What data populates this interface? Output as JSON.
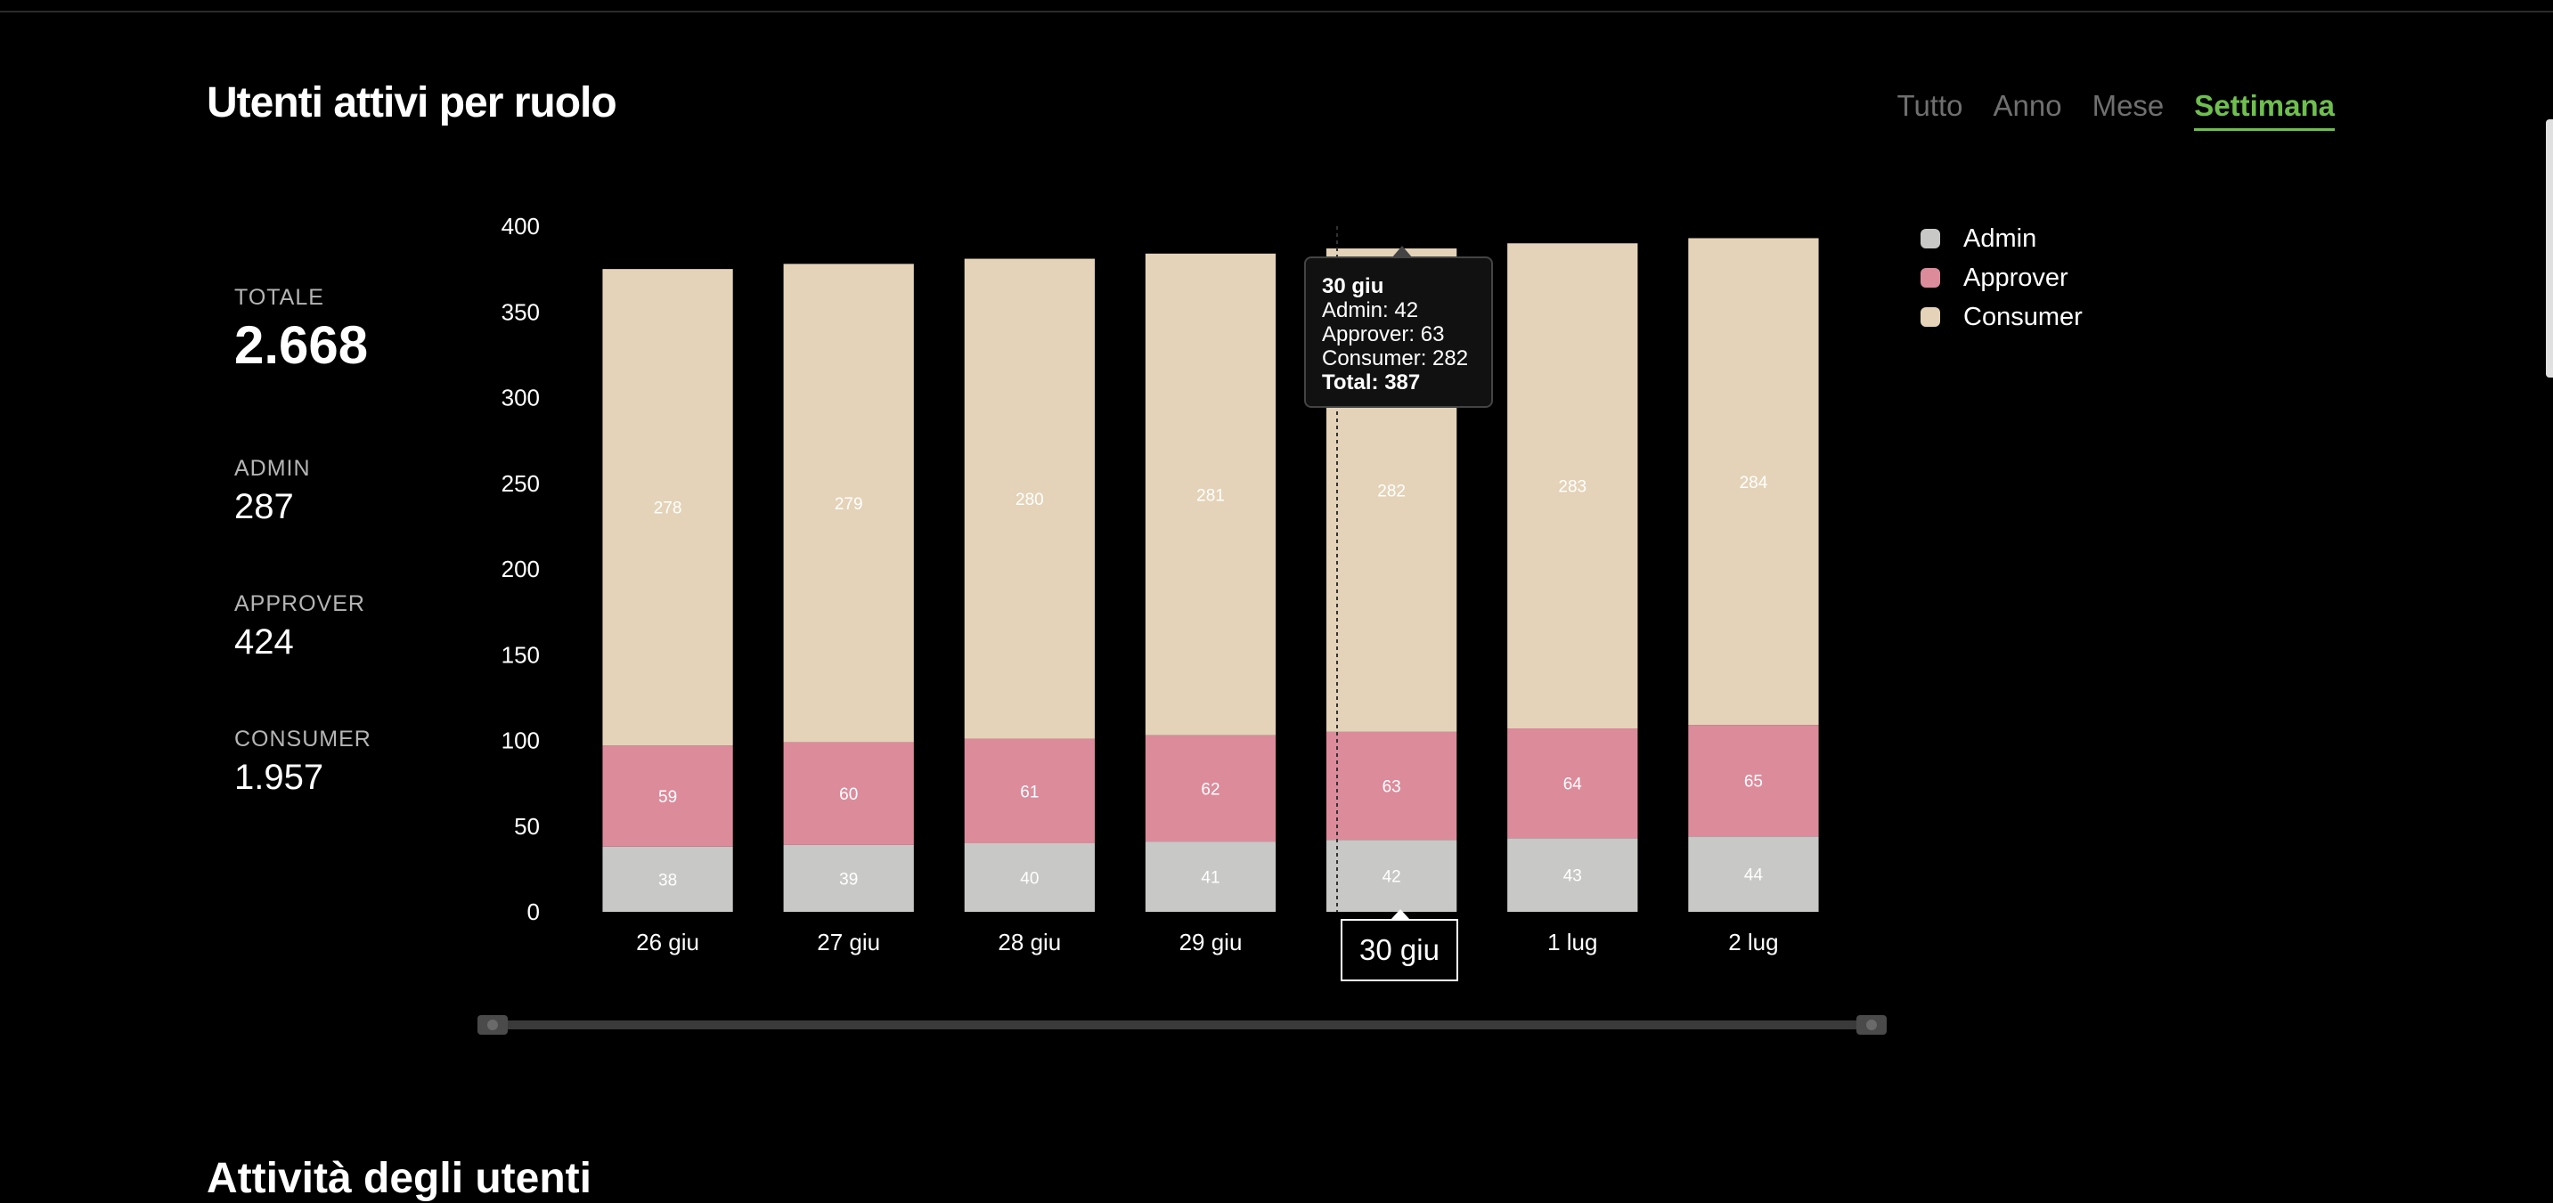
{
  "header": {
    "title": "Utenti attivi per ruolo",
    "tabs": [
      {
        "label": "Tutto",
        "active": false
      },
      {
        "label": "Anno",
        "active": false
      },
      {
        "label": "Mese",
        "active": false
      },
      {
        "label": "Settimana",
        "active": true
      }
    ]
  },
  "stats": [
    {
      "label": "TOTALE",
      "value": "2.668"
    },
    {
      "label": "ADMIN",
      "value": "287"
    },
    {
      "label": "APPROVER",
      "value": "424"
    },
    {
      "label": "CONSUMER",
      "value": "1.957"
    }
  ],
  "chart_data": {
    "type": "bar",
    "stacked": true,
    "categories": [
      "26 giu",
      "27 giu",
      "28 giu",
      "29 giu",
      "30 giu",
      "1 lug",
      "2 lug"
    ],
    "series": [
      {
        "name": "Admin",
        "values": [
          38,
          39,
          40,
          41,
          42,
          43,
          44
        ],
        "color": "#c8c8c6"
      },
      {
        "name": "Approver",
        "values": [
          59,
          60,
          61,
          62,
          63,
          64,
          65
        ],
        "color": "#dc8b9b"
      },
      {
        "name": "Consumer",
        "values": [
          278,
          279,
          280,
          281,
          282,
          283,
          284
        ],
        "color": "#e4d3b8"
      }
    ],
    "ylim": [
      0,
      400
    ],
    "yticks": [
      0,
      50,
      100,
      150,
      200,
      250,
      300,
      350,
      400
    ],
    "grid": false,
    "legend": "right",
    "data_labels": true,
    "hovered_category": "30 giu"
  },
  "tooltip": {
    "title": "30 giu",
    "lines": [
      "Admin: 42",
      "Approver: 63",
      "Consumer: 282"
    ],
    "total": "Total: 387"
  },
  "crosshair_label": "30 giu",
  "next_section_title": "Attività degli utenti"
}
